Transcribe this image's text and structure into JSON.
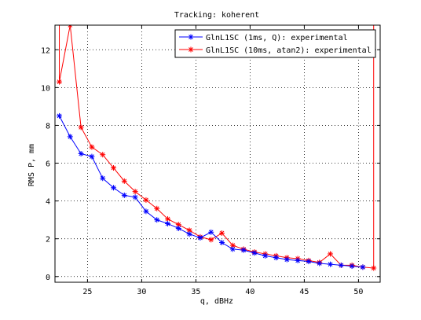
{
  "chart_data": {
    "type": "line",
    "title": "Tracking: koherent",
    "xlabel": "q, dBHz",
    "ylabel": "RMS P, mm",
    "xlim": [
      22,
      52
    ],
    "ylim": [
      -0.3,
      13.3
    ],
    "xticks": [
      25,
      30,
      35,
      40,
      45,
      50
    ],
    "yticks": [
      0,
      2,
      4,
      6,
      8,
      10,
      12
    ],
    "xtick_labels": [
      "25",
      "30",
      "35",
      "40",
      "45",
      "50"
    ],
    "ytick_labels": [
      "0",
      "2",
      "4",
      "6",
      "8",
      "10",
      "12"
    ],
    "grid": true,
    "legend_position": "top-right",
    "series": [
      {
        "name": "GlnL1SC (1ms, Q): experimental",
        "color": "#0000ff",
        "marker": "asterisk",
        "x": [
          22.4,
          23.4,
          24.4,
          25.4,
          26.4,
          27.4,
          28.4,
          29.4,
          30.4,
          31.4,
          32.4,
          33.4,
          34.4,
          35.4,
          36.4,
          37.4,
          38.4,
          39.4,
          40.4,
          41.4,
          42.4,
          43.4,
          44.4,
          45.4,
          46.4,
          47.4,
          48.4,
          49.4,
          50.4
        ],
        "y": [
          8.5,
          7.4,
          6.5,
          6.35,
          5.2,
          4.7,
          4.3,
          4.2,
          3.45,
          3.0,
          2.8,
          2.55,
          2.25,
          2.05,
          2.35,
          1.8,
          1.45,
          1.4,
          1.25,
          1.1,
          1.0,
          0.9,
          0.85,
          0.8,
          0.7,
          0.65,
          0.6,
          0.55,
          0.5
        ]
      },
      {
        "name": "GlnL1SC (10ms, atan2): experimental",
        "color": "#ff0000",
        "marker": "asterisk",
        "x": [
          22.4,
          23.4,
          24.4,
          25.4,
          26.4,
          27.4,
          28.4,
          29.4,
          30.4,
          31.4,
          32.4,
          33.4,
          34.4,
          35.4,
          36.4,
          37.4,
          38.4,
          39.4,
          40.4,
          41.4,
          42.4,
          43.4,
          44.4,
          45.4,
          46.4,
          47.4,
          48.4,
          49.4,
          50.4,
          51.4
        ],
        "y": [
          10.3,
          13.3,
          7.9,
          6.85,
          6.45,
          5.75,
          5.05,
          4.5,
          4.05,
          3.6,
          3.05,
          2.75,
          2.45,
          2.1,
          1.95,
          2.3,
          1.65,
          1.45,
          1.3,
          1.2,
          1.1,
          1.0,
          0.95,
          0.85,
          0.75,
          1.2,
          0.6,
          0.6,
          0.5,
          0.45
        ]
      }
    ]
  }
}
